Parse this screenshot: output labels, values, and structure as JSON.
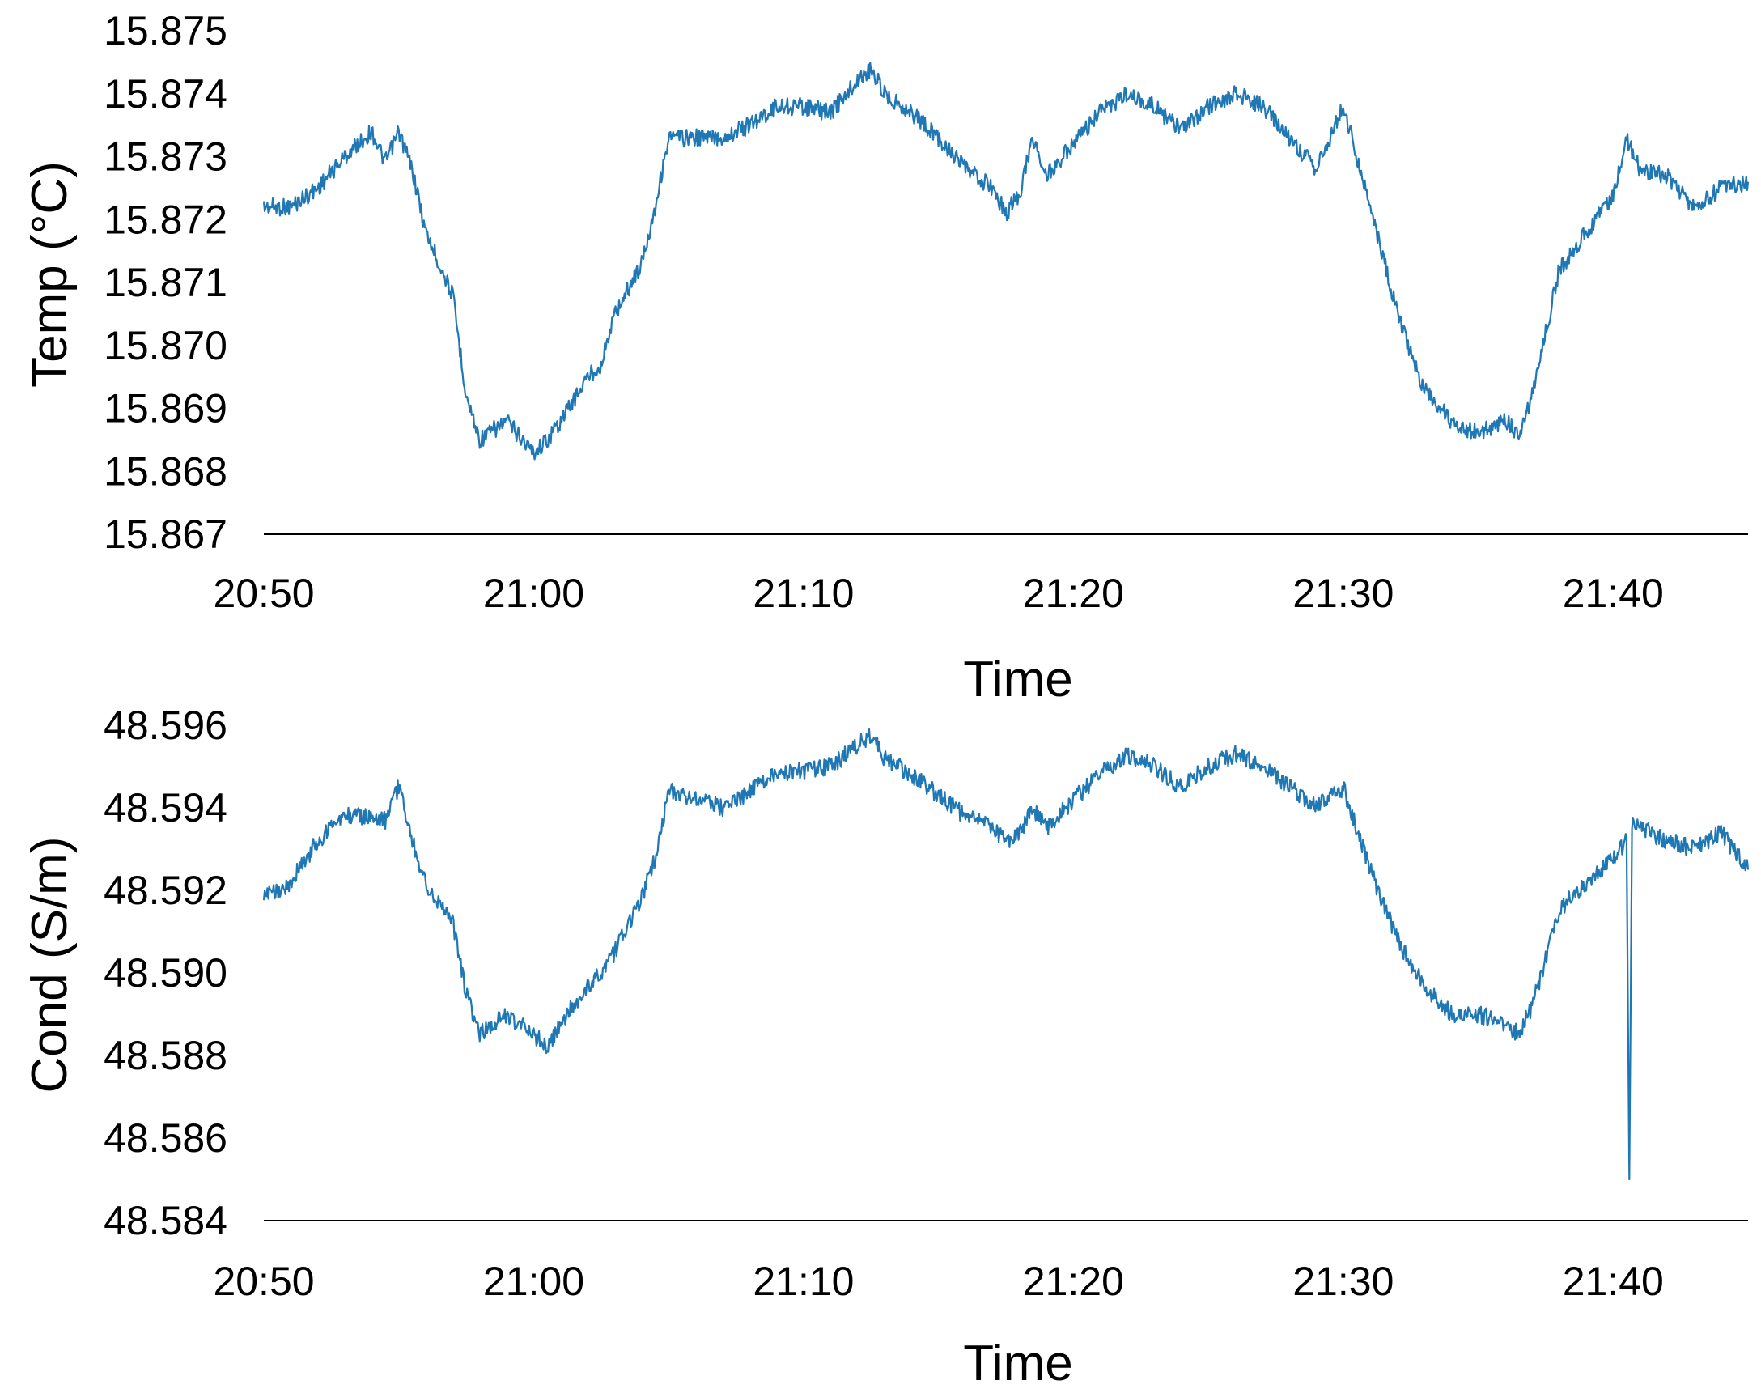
{
  "chart_data": [
    {
      "type": "line",
      "title": "",
      "xlabel": "Time",
      "ylabel": "Temp (°C)",
      "xlim": [
        "20:50",
        "21:45"
      ],
      "ylim": [
        15.867,
        15.875
      ],
      "x_ticks": [
        "20:50",
        "21:00",
        "21:10",
        "21:20",
        "21:30",
        "21:40"
      ],
      "y_ticks": [
        "15.867",
        "15.868",
        "15.869",
        "15.870",
        "15.871",
        "15.872",
        "15.873",
        "15.874",
        "15.875"
      ],
      "grid": false,
      "legend": "none",
      "color": "#1f77b4",
      "series": [
        {
          "x": [
            "20:50",
            "20:51",
            "20:52",
            "20:53",
            "20:54",
            "20:54.5",
            "20:55",
            "20:55.5",
            "20:56",
            "20:57",
            "20:57.5",
            "20:58",
            "20:59",
            "21:00",
            "21:00.5",
            "21:01",
            "21:02",
            "21:02.5",
            "21:03",
            "21:04",
            "21:04.5",
            "21:05",
            "21:06",
            "21:07",
            "21:08",
            "21:09",
            "21:10",
            "21:11",
            "21:12",
            "21:12.5",
            "21:13",
            "21:14",
            "21:15",
            "21:16",
            "21:17",
            "21:17.5",
            "21:18",
            "21:18.5",
            "21:19",
            "21:20",
            "21:21",
            "21:22",
            "21:23",
            "21:24",
            "21:25",
            "21:26",
            "21:27",
            "21:28",
            "21:29",
            "21:30",
            "21:31",
            "21:32",
            "21:33",
            "21:34",
            "21:35",
            "21:36",
            "21:36.5",
            "21:37",
            "21:38",
            "21:39",
            "21:40",
            "21:40.5",
            "21:41",
            "21:42",
            "21:43",
            "21:44",
            "21:45"
          ],
          "y": [
            15.8722,
            15.8722,
            15.8725,
            15.873,
            15.8734,
            15.8729,
            15.8734,
            15.8728,
            15.8718,
            15.8708,
            15.8692,
            15.8685,
            15.8688,
            15.8683,
            15.8685,
            15.8688,
            15.8695,
            15.8697,
            15.8705,
            15.8713,
            15.8722,
            15.8733,
            15.8733,
            15.8733,
            15.8735,
            15.8738,
            15.8738,
            15.8737,
            15.8742,
            15.8744,
            15.874,
            15.8737,
            15.8733,
            15.8728,
            15.8725,
            15.8721,
            15.8724,
            15.8733,
            15.8727,
            15.8732,
            15.8737,
            15.874,
            15.8738,
            15.8734,
            15.8738,
            15.874,
            15.8738,
            15.8733,
            15.8728,
            15.8738,
            15.8722,
            15.8705,
            15.8693,
            15.8688,
            15.8686,
            15.8688,
            15.8686,
            15.8692,
            15.8712,
            15.8718,
            15.8724,
            15.8733,
            15.8728,
            15.8727,
            15.8722,
            15.8725,
            15.8726
          ]
        }
      ]
    },
    {
      "type": "line",
      "title": "",
      "xlabel": "Time",
      "ylabel": "Cond (S/m)",
      "xlim": [
        "20:50",
        "21:45"
      ],
      "ylim": [
        48.584,
        48.596
      ],
      "x_ticks": [
        "20:50",
        "21:00",
        "21:10",
        "21:20",
        "21:30",
        "21:40"
      ],
      "y_ticks": [
        "48.584",
        "48.586",
        "48.588",
        "48.590",
        "48.592",
        "48.594",
        "48.596"
      ],
      "grid": false,
      "legend": "none",
      "color": "#1f77b4",
      "series": [
        {
          "x": [
            "20:50",
            "20:51",
            "20:52",
            "20:53",
            "20:54",
            "20:54.5",
            "20:55",
            "20:55.5",
            "20:56",
            "20:57",
            "20:57.5",
            "20:58",
            "20:59",
            "21:00",
            "21:00.5",
            "21:01",
            "21:02",
            "21:02.5",
            "21:03",
            "21:04",
            "21:04.5",
            "21:05",
            "21:06",
            "21:07",
            "21:08",
            "21:09",
            "21:10",
            "21:11",
            "21:12",
            "21:12.5",
            "21:13",
            "21:14",
            "21:15",
            "21:16",
            "21:17",
            "21:17.5",
            "21:18",
            "21:18.5",
            "21:19",
            "21:20",
            "21:21",
            "21:22",
            "21:23",
            "21:24",
            "21:25",
            "21:26",
            "21:27",
            "21:28",
            "21:29",
            "21:30",
            "21:31",
            "21:32",
            "21:33",
            "21:34",
            "21:35",
            "21:36",
            "21:36.5",
            "21:37",
            "21:38",
            "21:39",
            "21:40",
            "21:40.5",
            "21:40.6",
            "21:40.7",
            "21:41",
            "21:42",
            "21:43",
            "21:44",
            "21:45"
          ],
          "y": [
            48.5918,
            48.5922,
            48.5932,
            48.5938,
            48.5938,
            48.5937,
            48.5945,
            48.5932,
            48.5922,
            48.5912,
            48.5895,
            48.5885,
            48.589,
            48.5885,
            48.5882,
            48.5888,
            48.5897,
            48.59,
            48.5905,
            48.5918,
            48.5928,
            48.5944,
            48.5942,
            48.594,
            48.5944,
            48.5948,
            48.5949,
            48.595,
            48.5955,
            48.5958,
            48.5952,
            48.5948,
            48.5943,
            48.5938,
            48.5935,
            48.5932,
            48.5934,
            48.594,
            48.5935,
            48.5942,
            48.5948,
            48.5953,
            48.595,
            48.5945,
            48.595,
            48.5953,
            48.595,
            48.5945,
            48.594,
            48.5945,
            48.5925,
            48.5908,
            48.5897,
            48.589,
            48.589,
            48.5888,
            48.5885,
            48.5892,
            48.5915,
            48.5922,
            48.5928,
            48.5932,
            48.585,
            48.5936,
            48.5935,
            48.5932,
            48.593,
            48.5934,
            48.5925
          ]
        }
      ]
    }
  ]
}
